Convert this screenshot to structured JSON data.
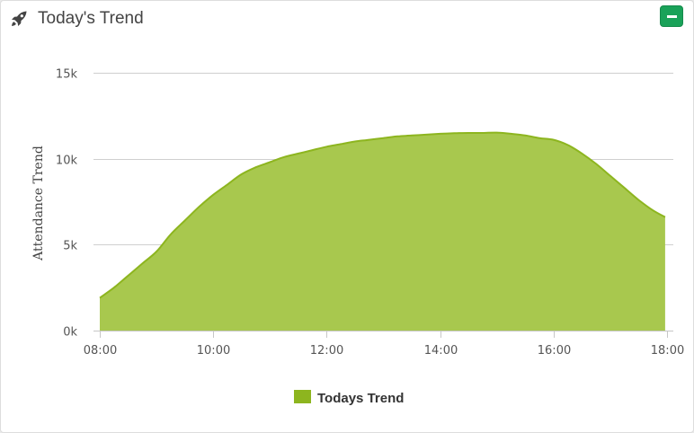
{
  "panel": {
    "title": "Today's Trend",
    "header_icon": "rocket-icon",
    "collapse_icon": "minus-icon",
    "accent_color": "#1aa259"
  },
  "chart_data": {
    "type": "area",
    "ylabel": "Attendance Trend",
    "xlabel": "",
    "y_ticks": [
      "0k",
      "5k",
      "10k",
      "15k"
    ],
    "y_tick_values": [
      0,
      5000,
      10000,
      15000
    ],
    "ylim": [
      0,
      15000
    ],
    "x_ticks": [
      "08:00",
      "10:00",
      "12:00",
      "14:00",
      "16:00",
      "18:00"
    ],
    "x_tick_values": [
      "08:00",
      "10:00",
      "12:00",
      "14:00",
      "16:00",
      "18:00"
    ],
    "xlim": [
      "08:00",
      "18:00"
    ],
    "grid": true,
    "legend_position": "bottom-center",
    "series": [
      {
        "name": "Todays Trend",
        "color": "#8db51f",
        "fill": "#a8c84e",
        "x": [
          "08:00",
          "08:15",
          "08:30",
          "08:45",
          "09:00",
          "09:15",
          "09:30",
          "09:45",
          "10:00",
          "10:15",
          "10:30",
          "10:45",
          "11:00",
          "11:15",
          "11:30",
          "11:45",
          "12:00",
          "12:15",
          "12:30",
          "12:45",
          "13:00",
          "13:15",
          "13:30",
          "13:45",
          "14:00",
          "14:15",
          "14:30",
          "14:45",
          "15:00",
          "15:15",
          "15:30",
          "15:45",
          "16:00",
          "16:15",
          "16:30",
          "16:45",
          "17:00",
          "17:15",
          "17:30",
          "17:45",
          "17:58"
        ],
        "values": [
          1900,
          2500,
          3200,
          3900,
          4600,
          5600,
          6400,
          7200,
          7900,
          8500,
          9100,
          9500,
          9800,
          10100,
          10300,
          10500,
          10700,
          10850,
          11000,
          11100,
          11200,
          11300,
          11350,
          11400,
          11450,
          11480,
          11500,
          11500,
          11520,
          11450,
          11350,
          11200,
          11100,
          10800,
          10300,
          9700,
          9000,
          8300,
          7600,
          7000,
          6600
        ]
      }
    ]
  }
}
